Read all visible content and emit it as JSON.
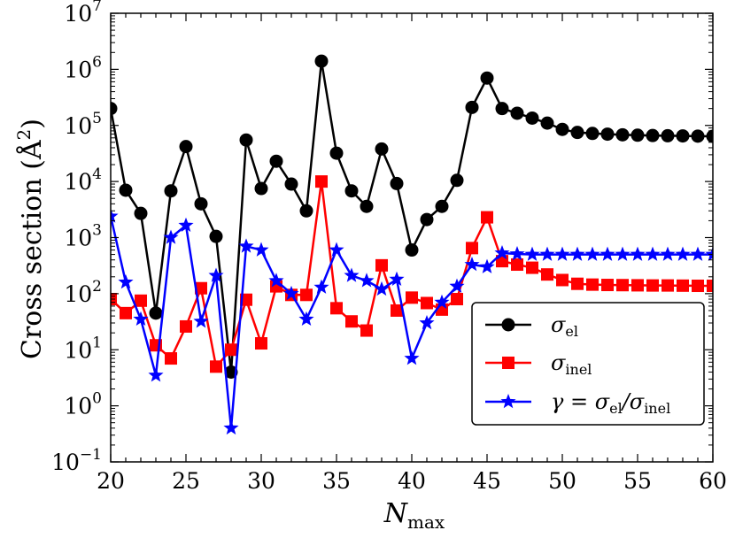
{
  "chart_data": {
    "type": "line",
    "xlabel": "N",
    "xlabel_sub": "max",
    "ylabel": "Cross section (Å",
    "ylabel_sup": "2",
    "ylabel_close": ")",
    "xlim": [
      20,
      60
    ],
    "ylim_log10": [
      -1,
      7
    ],
    "yscale": "log",
    "x_ticks": [
      20,
      25,
      30,
      35,
      40,
      45,
      50,
      55,
      60
    ],
    "y_tick_exponents": [
      -1,
      0,
      1,
      2,
      3,
      4,
      5,
      6,
      7
    ],
    "y_tick_base": "10",
    "legend_position": "lower-right",
    "x": [
      20,
      21,
      22,
      23,
      24,
      25,
      26,
      27,
      28,
      29,
      30,
      31,
      32,
      33,
      34,
      35,
      36,
      37,
      38,
      39,
      40,
      41,
      42,
      43,
      44,
      45,
      46,
      47,
      48,
      49,
      50,
      51,
      52,
      53,
      54,
      55,
      56,
      57,
      58,
      59,
      60
    ],
    "series": [
      {
        "name": "σel",
        "legend": {
          "symbol": "σ",
          "sub": "el"
        },
        "color": "#000000",
        "marker": "circle",
        "values": [
          200000,
          7000,
          2700,
          45,
          6800,
          42000,
          4000,
          1050,
          4,
          55000,
          7500,
          23000,
          9000,
          3000,
          1400000,
          32000,
          6800,
          3600,
          38000,
          9200,
          600,
          2100,
          3600,
          10500,
          210000,
          700000,
          200000,
          165000,
          135000,
          110000,
          85000,
          75000,
          72000,
          70000,
          68000,
          67000,
          66000,
          65500,
          65000,
          64500,
          64000
        ]
      },
      {
        "name": "σinel",
        "legend": {
          "symbol": "σ",
          "sub": "inel"
        },
        "color": "#ff0000",
        "marker": "square",
        "values": [
          80,
          45,
          75,
          12,
          7,
          26,
          125,
          5,
          10,
          78,
          13,
          135,
          95,
          95,
          10000,
          55,
          32,
          22,
          320,
          50,
          85,
          68,
          52,
          80,
          650,
          2300,
          380,
          330,
          290,
          220,
          175,
          150,
          145,
          143,
          142,
          141,
          140,
          140,
          139,
          138,
          138
        ]
      },
      {
        "name": "γ = σel/σinel",
        "legend": {
          "prefix": "γ = ",
          "symbol": "σ",
          "sub": "el",
          "slash": "/",
          "symbol2": "σ",
          "sub2": "inel"
        },
        "color": "#0000ff",
        "marker": "star",
        "values": [
          2400,
          160,
          35,
          3.5,
          1000,
          1650,
          32,
          210,
          0.4,
          700,
          600,
          170,
          100,
          35,
          130,
          600,
          210,
          170,
          120,
          180,
          7,
          30,
          70,
          135,
          330,
          300,
          530,
          510,
          500,
          500,
          500,
          500,
          500,
          500,
          500,
          500,
          500,
          500,
          500,
          500,
          500
        ]
      }
    ]
  }
}
